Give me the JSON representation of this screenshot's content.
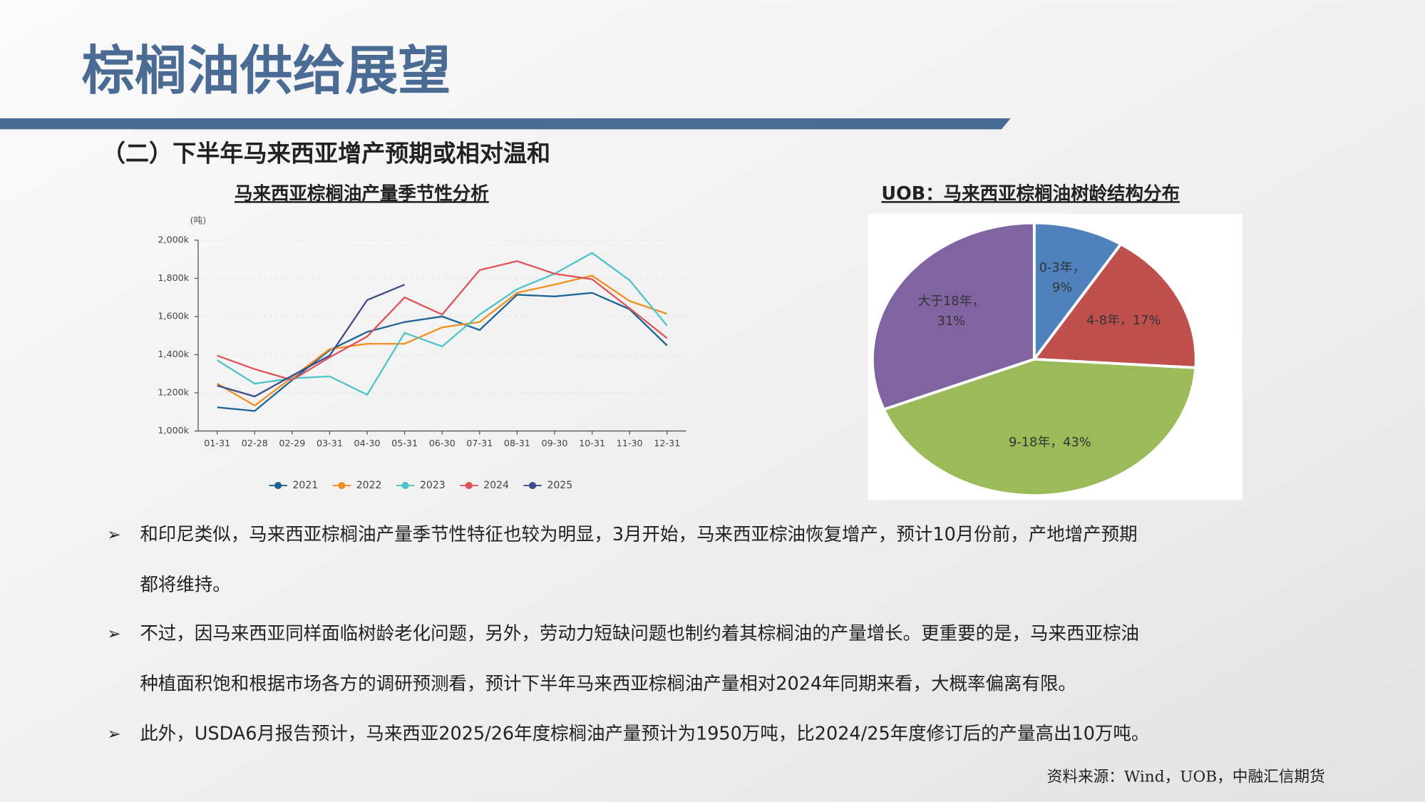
{
  "header": {
    "title": "棕榈油供给展望"
  },
  "subtitle": "（二）下半年马来西亚增产预期或相对温和",
  "chart_data": [
    {
      "type": "line",
      "title": "马来西亚棕榈油产量季节性分析",
      "y_unit": "(吨)",
      "categories": [
        "01-31",
        "02-28",
        "02-29",
        "03-31",
        "04-30",
        "05-31",
        "06-30",
        "07-31",
        "08-31",
        "09-30",
        "10-31",
        "11-30",
        "12-31"
      ],
      "ylim": [
        1000000,
        2000000
      ],
      "yticks": [
        {
          "value": 1000000,
          "label": "1,000k"
        },
        {
          "value": 1200000,
          "label": "1,200k"
        },
        {
          "value": 1400000,
          "label": "1,400k"
        },
        {
          "value": 1600000,
          "label": "1,600k"
        },
        {
          "value": 1800000,
          "label": "1,800k"
        },
        {
          "value": 2000000,
          "label": "2,000k"
        }
      ],
      "grid": true,
      "series": [
        {
          "name": "2021",
          "color": "#1a6496",
          "values": [
            1124000,
            1105000,
            1267000,
            1424000,
            1519000,
            1571000,
            1600000,
            1529000,
            1714000,
            1705000,
            1724000,
            1638000,
            1448000
          ]
        },
        {
          "name": "2022",
          "color": "#f28e1c",
          "values": [
            1248000,
            1133000,
            1281000,
            1429000,
            1457000,
            1457000,
            1543000,
            1571000,
            1724000,
            1767000,
            1814000,
            1681000,
            1614000
          ]
        },
        {
          "name": "2023",
          "color": "#4cc3c4",
          "values": [
            1371000,
            1248000,
            1276000,
            1286000,
            1190000,
            1514000,
            1443000,
            1610000,
            1743000,
            1824000,
            1933000,
            1790000,
            1552000
          ]
        },
        {
          "name": "2024",
          "color": "#e0525a",
          "values": [
            1395000,
            1324000,
            1267000,
            1386000,
            1495000,
            1700000,
            1610000,
            1843000,
            1890000,
            1824000,
            1795000,
            1643000,
            1486000
          ]
        },
        {
          "name": "2025",
          "color": "#3b4b8c",
          "values": [
            1238000,
            1181000,
            1290000,
            1395000,
            1686000,
            1767000,
            null,
            null,
            null,
            null,
            null,
            null,
            null
          ]
        }
      ]
    },
    {
      "type": "pie",
      "title": "UOB：马来西亚棕榈油树龄结构分布",
      "labels": [
        [
          "0-3年，",
          "9%"
        ],
        [
          "4-8年，17%"
        ],
        [
          "9-18年，43%"
        ],
        [
          "大于18年，",
          "31%"
        ]
      ],
      "values": [
        9,
        17,
        43,
        31
      ],
      "colors": [
        "#4f81bd",
        "#c0504d",
        "#9bbb59",
        "#8064a2"
      ]
    }
  ],
  "bullets": [
    [
      "和印尼类似，马来西亚棕榈油产量季节性特征也较为明显，3月开始，马来西亚棕油恢复增产，预计10月份前，产地增产预期",
      "都将维持。"
    ],
    [
      "不过，因马来西亚同样面临树龄老化问题，另外，劳动力短缺问题也制约着其棕榈油的产量增长。更重要的是，马来西亚棕油",
      "种植面积饱和根据市场各方的调研预测看，预计下半年马来西亚棕榈油产量相对2024年同期来看，大概率偏离有限。"
    ],
    [
      "此外，USDA6月报告预计，马来西亚2025/26年度棕榈油产量预计为1950万吨，比2024/25年度修订后的产量高出10万吨。"
    ]
  ],
  "bullet_marker": "➢",
  "source": "资料来源：Wind，UOB，中融汇信期货"
}
